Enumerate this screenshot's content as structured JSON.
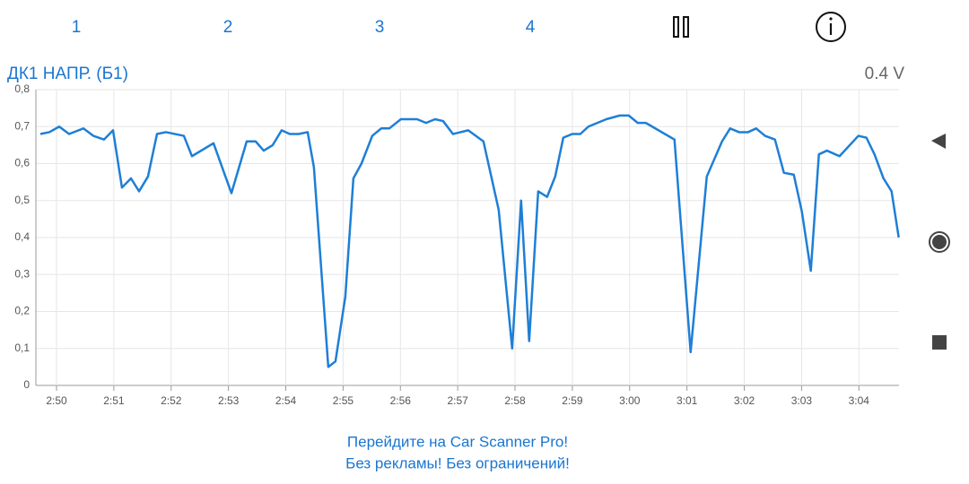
{
  "tabs": [
    "1",
    "2",
    "3",
    "4"
  ],
  "readout": "0.4 V",
  "promo": [
    "Перейдите на Car Scanner Pro!",
    "Без рекламы! Без ограничений!"
  ],
  "chart_data": {
    "type": "line",
    "title": "ДК1 НАПР. (Б1)",
    "color": "#1e7fd6",
    "grid": true,
    "xlim": [
      169.64,
      184.7
    ],
    "xticks": [
      {
        "value": 170,
        "label": "2:50"
      },
      {
        "value": 171,
        "label": "2:51"
      },
      {
        "value": 172,
        "label": "2:52"
      },
      {
        "value": 173,
        "label": "2:53"
      },
      {
        "value": 174,
        "label": "2:54"
      },
      {
        "value": 175,
        "label": "2:55"
      },
      {
        "value": 176,
        "label": "2:56"
      },
      {
        "value": 177,
        "label": "2:57"
      },
      {
        "value": 178,
        "label": "2:58"
      },
      {
        "value": 179,
        "label": "2:59"
      },
      {
        "value": 180,
        "label": "3:00"
      },
      {
        "value": 181,
        "label": "3:01"
      },
      {
        "value": 182,
        "label": "3:02"
      },
      {
        "value": 183,
        "label": "3:03"
      },
      {
        "value": 184,
        "label": "3:04"
      }
    ],
    "ylim": [
      0,
      0.8
    ],
    "yticks": [
      0,
      {
        "value": 0.1,
        "label": "0,1"
      },
      {
        "value": 0.2,
        "label": "0,2"
      },
      {
        "value": 0.3,
        "label": "0,3"
      },
      {
        "value": 0.4,
        "label": "0,4"
      },
      {
        "value": 0.5,
        "label": "0,5"
      },
      {
        "value": 0.6,
        "label": "0,6"
      },
      {
        "value": 0.7,
        "label": "0,7"
      },
      {
        "value": 0.8,
        "label": "0,8"
      }
    ],
    "x": [
      169.718,
      169.875,
      170.047,
      170.219,
      170.469,
      170.642,
      170.829,
      170.986,
      171.142,
      171.299,
      171.44,
      171.596,
      171.753,
      171.909,
      172.222,
      172.363,
      172.739,
      173.052,
      173.318,
      173.474,
      173.615,
      173.772,
      173.928,
      174.069,
      174.225,
      174.382,
      174.491,
      174.742,
      174.867,
      175.039,
      175.18,
      175.321,
      175.509,
      175.665,
      175.806,
      176.009,
      176.291,
      176.448,
      176.604,
      176.745,
      176.917,
      177.183,
      177.449,
      177.715,
      177.95,
      178.106,
      178.247,
      178.404,
      178.56,
      178.701,
      178.842,
      178.998,
      179.139,
      179.28,
      179.593,
      179.828,
      179.984,
      180.141,
      180.282,
      180.782,
      181.064,
      181.346,
      181.612,
      181.753,
      181.909,
      182.066,
      182.207,
      182.363,
      182.535,
      182.692,
      182.864,
      183.005,
      183.161,
      183.302,
      183.443,
      183.662,
      183.991,
      184.131,
      184.272,
      184.429,
      184.57,
      184.695
    ],
    "values": [
      0.68,
      0.685,
      0.7,
      0.68,
      0.695,
      0.675,
      0.665,
      0.69,
      0.535,
      0.56,
      0.525,
      0.565,
      0.68,
      0.685,
      0.675,
      0.62,
      0.655,
      0.52,
      0.66,
      0.66,
      0.635,
      0.65,
      0.69,
      0.68,
      0.68,
      0.685,
      0.59,
      0.05,
      0.065,
      0.24,
      0.56,
      0.6,
      0.675,
      0.695,
      0.695,
      0.72,
      0.72,
      0.71,
      0.72,
      0.715,
      0.68,
      0.69,
      0.66,
      0.475,
      0.1,
      0.5,
      0.12,
      0.525,
      0.51,
      0.565,
      0.67,
      0.68,
      0.68,
      0.7,
      0.72,
      0.73,
      0.73,
      0.71,
      0.71,
      0.665,
      0.09,
      0.565,
      0.66,
      0.695,
      0.685,
      0.685,
      0.695,
      0.675,
      0.665,
      0.575,
      0.57,
      0.47,
      0.31,
      0.625,
      0.635,
      0.62,
      0.675,
      0.67,
      0.625,
      0.56,
      0.525,
      0.4
    ]
  }
}
